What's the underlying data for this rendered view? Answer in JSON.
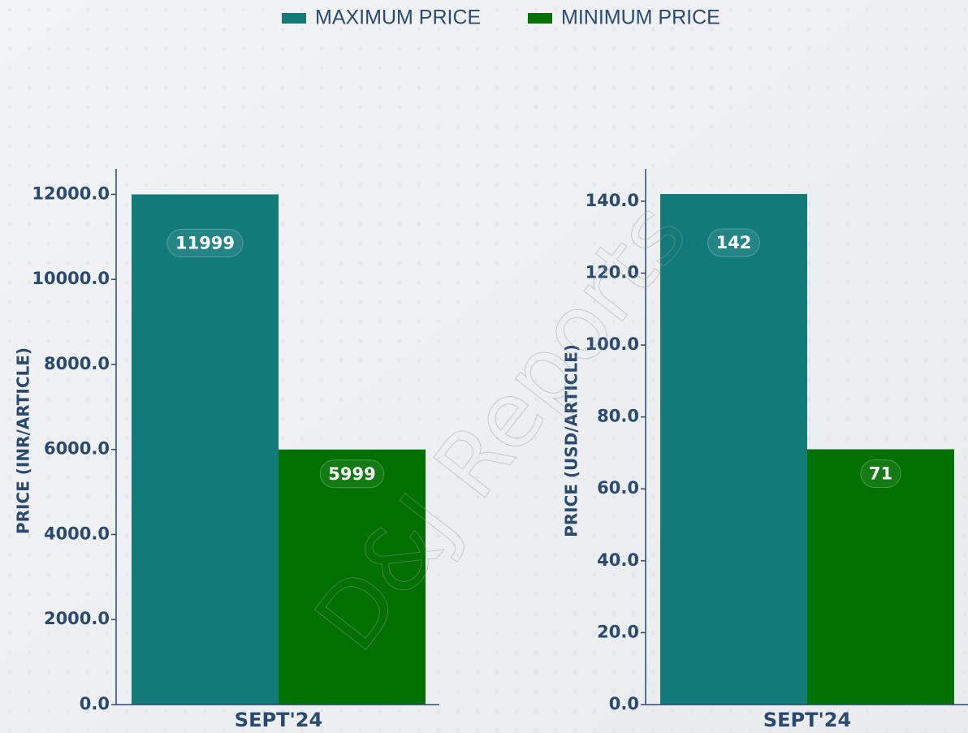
{
  "watermark": "D&J Reports",
  "chart_data": [
    {
      "type": "bar",
      "ylabel": "PRICE (INR/ARTICLE)",
      "categories": [
        "SEPT'24"
      ],
      "series": [
        {
          "name": "MAXIMUM PRICE",
          "color": "#137a7a",
          "values": [
            11999
          ]
        },
        {
          "name": "MINIMUM PRICE",
          "color": "#007000",
          "values": [
            5999
          ]
        }
      ],
      "ylim": [
        0,
        12600
      ],
      "yticks": [
        {
          "value": 0,
          "label": "0.0"
        },
        {
          "value": 2000,
          "label": "2000.0"
        },
        {
          "value": 4000,
          "label": "4000.0"
        },
        {
          "value": 6000,
          "label": "6000.0"
        },
        {
          "value": 8000,
          "label": "8000.0"
        },
        {
          "value": 10000,
          "label": "10000.0"
        },
        {
          "value": 12000,
          "label": "12000.0"
        }
      ]
    },
    {
      "type": "bar",
      "ylabel": "PRICE (USD/ARTICLE)",
      "categories": [
        "SEPT'24"
      ],
      "series": [
        {
          "color": "#137a7a",
          "values": [
            142
          ]
        },
        {
          "color": "#007000",
          "values": [
            71
          ]
        }
      ],
      "ylim": [
        0,
        149
      ],
      "yticks": [
        {
          "value": 0,
          "label": "0.0"
        },
        {
          "value": 20,
          "label": "20.0"
        },
        {
          "value": 40,
          "label": "40.0"
        },
        {
          "value": 60,
          "label": "60.0"
        },
        {
          "value": 80,
          "label": "80.0"
        },
        {
          "value": 100,
          "label": "100.0"
        },
        {
          "value": 120,
          "label": "120.0"
        },
        {
          "value": 140,
          "label": "140.0"
        }
      ]
    }
  ]
}
